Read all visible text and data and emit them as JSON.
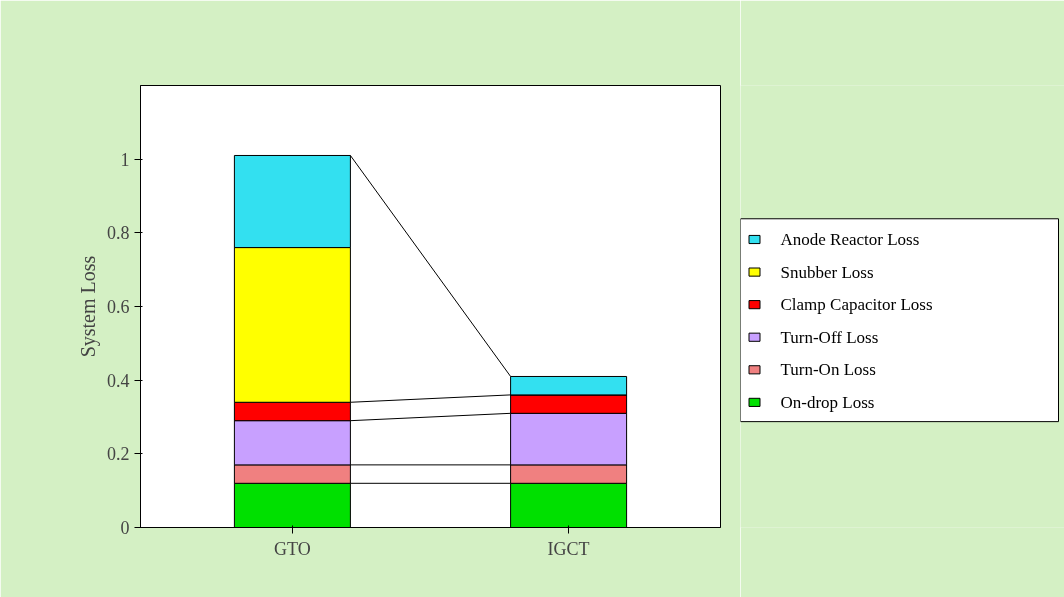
{
  "chart_data": {
    "type": "bar",
    "stacked": true,
    "ylabel": "System Loss",
    "categories": [
      "GTO",
      "IGCT"
    ],
    "series": [
      {
        "name": "On-drop Loss",
        "color": "#00e000",
        "values": [
          0.12,
          0.12
        ]
      },
      {
        "name": "Turn-On Loss",
        "color": "#f08080",
        "values": [
          0.05,
          0.05
        ]
      },
      {
        "name": "Turn-Off Loss",
        "color": "#c8a0ff",
        "values": [
          0.12,
          0.14
        ]
      },
      {
        "name": "Clamp Capacitor Loss",
        "color": "#ff0000",
        "values": [
          0.05,
          0.05
        ]
      },
      {
        "name": "Snubber Loss",
        "color": "#ffff00",
        "values": [
          0.42,
          0
        ]
      },
      {
        "name": "Anode Reactor Loss",
        "color": "#33e0f0",
        "values": [
          0.25,
          0.05
        ]
      }
    ],
    "ylim": [
      0,
      1.2
    ],
    "yticks": [
      0,
      0.2,
      0.4,
      0.6,
      0.8,
      1
    ],
    "grid": false,
    "legend": "right"
  }
}
